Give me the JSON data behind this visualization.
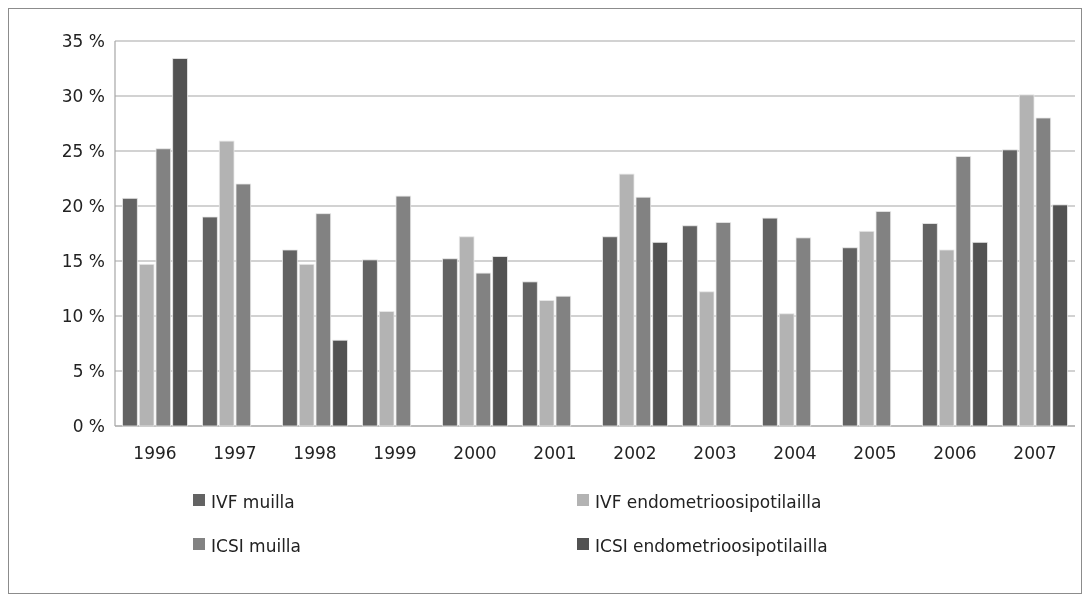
{
  "chart_data": {
    "type": "bar",
    "categories": [
      "1996",
      "1997",
      "1998",
      "1999",
      "2000",
      "2001",
      "2002",
      "2003",
      "2004",
      "2005",
      "2006",
      "2007"
    ],
    "series": [
      {
        "name": "IVF muilla",
        "color": "#636363",
        "values": [
          20.7,
          19.0,
          16.0,
          15.1,
          15.2,
          13.1,
          17.2,
          18.2,
          18.9,
          16.2,
          18.4,
          25.1
        ]
      },
      {
        "name": "IVF endometrioosipotilailla",
        "color": "#b3b3b3",
        "values": [
          14.7,
          25.9,
          14.7,
          10.4,
          17.2,
          11.4,
          22.9,
          12.2,
          10.2,
          17.7,
          16.0,
          30.1
        ]
      },
      {
        "name": "ICSI muilla",
        "color": "#828282",
        "values": [
          25.2,
          22.0,
          19.3,
          20.9,
          13.9,
          11.8,
          20.8,
          18.5,
          17.1,
          19.5,
          24.5,
          28.0
        ]
      },
      {
        "name": "ICSI endometrioosipotilailla",
        "color": "#525252",
        "values": [
          33.4,
          null,
          7.8,
          null,
          15.4,
          null,
          16.7,
          null,
          null,
          null,
          16.7,
          20.1
        ]
      }
    ],
    "ylim": [
      0,
      35
    ],
    "yticks": [
      {
        "value": 0,
        "label": "0 %"
      },
      {
        "value": 5,
        "label": "5 %"
      },
      {
        "value": 10,
        "label": "10 %"
      },
      {
        "value": 15,
        "label": "15 %"
      },
      {
        "value": 20,
        "label": "20 %"
      },
      {
        "value": 25,
        "label": "25 %"
      },
      {
        "value": 30,
        "label": "30 %"
      },
      {
        "value": 35,
        "label": "35 %"
      }
    ],
    "grid": "y",
    "legend": "bottom"
  }
}
